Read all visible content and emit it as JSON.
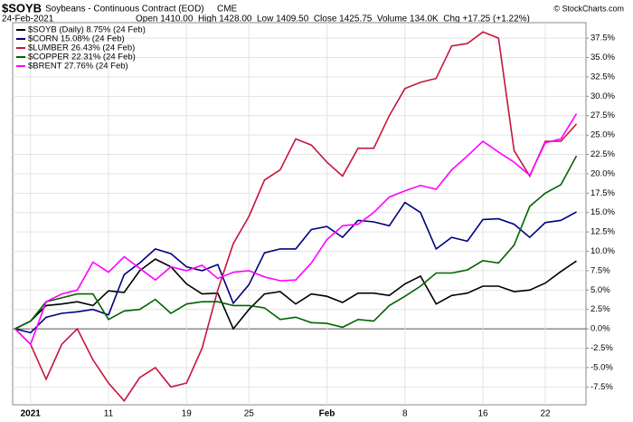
{
  "chart_data": {
    "type": "line",
    "title": "$SOYB",
    "subtitle": "Soybeans - Continuous Contract (EOD)",
    "exchange": "CME",
    "credit": "© StockCharts.com",
    "date": "24-Feb-2021",
    "quote": "Open 1410.00  High 1428.00  Low 1409.50  Close 1425.75  Volume 134.0K  Chg +17.25 (+1.22%)",
    "categories": [
      null,
      "2021",
      null,
      null,
      null,
      null,
      "11",
      null,
      null,
      null,
      null,
      "19",
      null,
      null,
      null,
      "25",
      null,
      null,
      null,
      null,
      "Feb",
      null,
      null,
      null,
      null,
      "8",
      null,
      null,
      null,
      null,
      "16",
      null,
      null,
      null,
      "22",
      null,
      null
    ],
    "ylim": [
      -9.8,
      39.5
    ],
    "yticks": [
      {
        "value": -7.5,
        "label": "-7.5%"
      },
      {
        "value": -5,
        "label": "-5.0%"
      },
      {
        "value": -2.5,
        "label": "-2.5%"
      },
      {
        "value": 0,
        "label": "0.0%"
      },
      {
        "value": 2.5,
        "label": "2.5%"
      },
      {
        "value": 5,
        "label": "5.0%"
      },
      {
        "value": 7.5,
        "label": "7.5%"
      },
      {
        "value": 10,
        "label": "10.0%"
      },
      {
        "value": 12.5,
        "label": "12.5%"
      },
      {
        "value": 15,
        "label": "15.0%"
      },
      {
        "value": 17.5,
        "label": "17.5%"
      },
      {
        "value": 20,
        "label": "20.0%"
      },
      {
        "value": 22.5,
        "label": "22.5%"
      },
      {
        "value": 25,
        "label": "25.0%"
      },
      {
        "value": 27.5,
        "label": "27.5%"
      },
      {
        "value": 30,
        "label": "30.0%"
      },
      {
        "value": 32.5,
        "label": "32.5%"
      },
      {
        "value": 35,
        "label": "35.0%"
      },
      {
        "value": 37.5,
        "label": "37.5%"
      }
    ],
    "grid": true,
    "legend": "top-left",
    "series": [
      {
        "name": "$SOYB (Daily) 8.75% (24 Feb)",
        "color": "#000000",
        "values": [
          0,
          1.0,
          3.0,
          3.2,
          3.5,
          3.0,
          4.9,
          4.7,
          7.5,
          9.0,
          8.0,
          5.8,
          4.5,
          4.6,
          0,
          2.5,
          4.5,
          4.8,
          3.2,
          4.5,
          4.2,
          3.4,
          4.6,
          4.6,
          4.3,
          5.8,
          6.8,
          3.2,
          4.3,
          4.6,
          5.5,
          5.5,
          4.8,
          5.0,
          5.9,
          7.4,
          8.75
        ]
      },
      {
        "name": "$CORN 15.08% (24 Feb)",
        "color": "#000080",
        "values": [
          0,
          -0.5,
          1.5,
          2.0,
          2.2,
          2.5,
          1.8,
          7.0,
          8.5,
          10.3,
          9.7,
          8.0,
          7.5,
          8.3,
          3.3,
          5.7,
          9.8,
          10.3,
          10.3,
          12.8,
          13.2,
          11.8,
          14.0,
          13.8,
          13.3,
          16.3,
          15.0,
          10.3,
          11.8,
          11.3,
          14.1,
          14.2,
          13.5,
          11.8,
          13.7,
          14.0,
          15.08
        ]
      },
      {
        "name": "$LUMBER 26.43% (24 Feb)",
        "color": "#c8143c",
        "values": [
          0,
          -2.0,
          -6.5,
          -2.0,
          0,
          -4.0,
          -7.0,
          -9.3,
          -6.3,
          -5.0,
          -7.5,
          -7.0,
          -2.5,
          5.0,
          11.0,
          14.5,
          19.2,
          20.5,
          24.5,
          23.7,
          21.5,
          19.7,
          23.3,
          23.3,
          27.5,
          31.0,
          31.8,
          32.3,
          36.5,
          36.8,
          38.3,
          37.5,
          23.0,
          19.7,
          24.2,
          24.2,
          26.43
        ]
      },
      {
        "name": "$COPPER 22.31% (24 Feb)",
        "color": "#006400",
        "values": [
          0,
          1.0,
          3.5,
          4.0,
          4.5,
          4.5,
          1.2,
          2.3,
          2.5,
          3.8,
          2.0,
          3.2,
          3.5,
          3.5,
          3.0,
          3.0,
          2.7,
          1.2,
          1.5,
          0.8,
          0.7,
          0.2,
          1.2,
          1.0,
          3.0,
          4.2,
          5.5,
          7.2,
          7.2,
          7.6,
          8.8,
          8.5,
          10.8,
          15.8,
          17.5,
          18.6,
          22.31
        ]
      },
      {
        "name": "$BRENT 27.76% (24 Feb)",
        "color": "#ff00ff",
        "values": [
          0,
          -2.0,
          3.5,
          4.5,
          5.0,
          8.6,
          7.3,
          9.3,
          7.8,
          6.3,
          8.0,
          7.5,
          8.2,
          6.5,
          7.3,
          7.5,
          6.7,
          6.2,
          6.3,
          8.5,
          11.5,
          13.3,
          13.5,
          15.0,
          17.0,
          17.8,
          18.5,
          18.0,
          20.5,
          22.3,
          24.2,
          22.8,
          21.5,
          19.8,
          24.0,
          24.5,
          27.76
        ]
      }
    ]
  }
}
